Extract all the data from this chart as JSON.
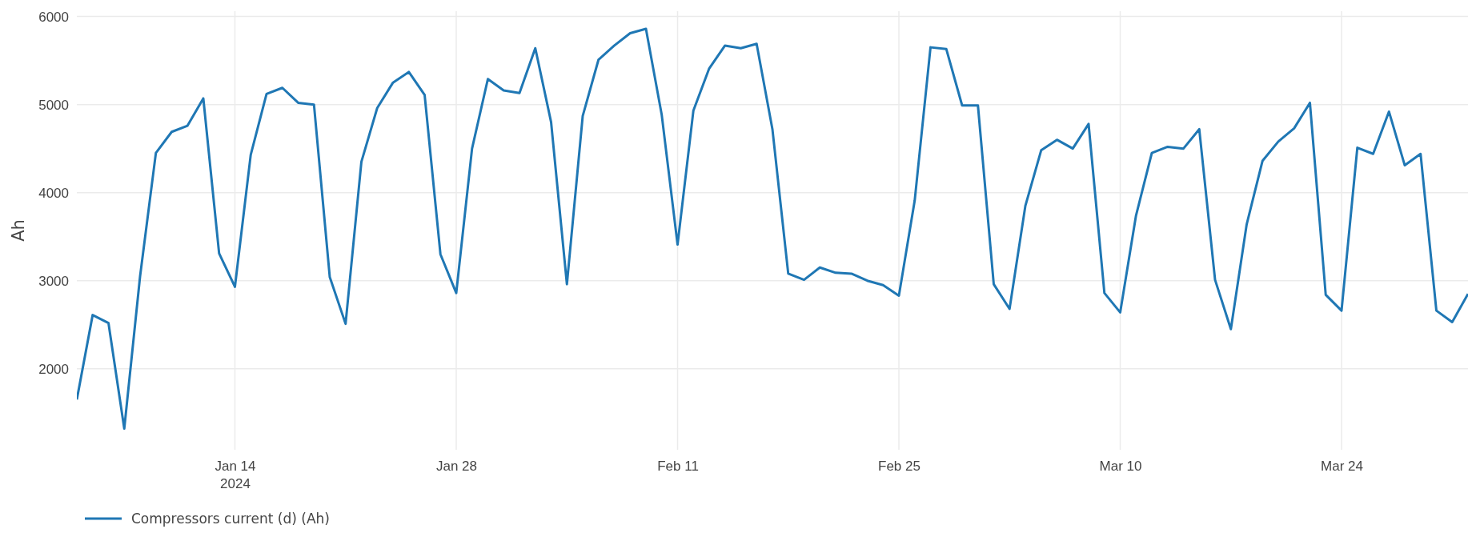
{
  "chart_data": {
    "type": "line",
    "ylabel": "Ah",
    "x": [
      "2024-01-04",
      "2024-01-05",
      "2024-01-06",
      "2024-01-07",
      "2024-01-08",
      "2024-01-09",
      "2024-01-10",
      "2024-01-11",
      "2024-01-12",
      "2024-01-13",
      "2024-01-14",
      "2024-01-15",
      "2024-01-16",
      "2024-01-17",
      "2024-01-18",
      "2024-01-19",
      "2024-01-20",
      "2024-01-21",
      "2024-01-22",
      "2024-01-23",
      "2024-01-24",
      "2024-01-25",
      "2024-01-26",
      "2024-01-27",
      "2024-01-28",
      "2024-01-29",
      "2024-01-30",
      "2024-01-31",
      "2024-02-01",
      "2024-02-02",
      "2024-02-03",
      "2024-02-04",
      "2024-02-05",
      "2024-02-06",
      "2024-02-07",
      "2024-02-08",
      "2024-02-09",
      "2024-02-10",
      "2024-02-11",
      "2024-02-12",
      "2024-02-13",
      "2024-02-14",
      "2024-02-15",
      "2024-02-16",
      "2024-02-17",
      "2024-02-18",
      "2024-02-19",
      "2024-02-20",
      "2024-02-21",
      "2024-02-22",
      "2024-02-23",
      "2024-02-24",
      "2024-02-25",
      "2024-02-26",
      "2024-02-27",
      "2024-02-28",
      "2024-02-29",
      "2024-03-01",
      "2024-03-02",
      "2024-03-03",
      "2024-03-04",
      "2024-03-05",
      "2024-03-06",
      "2024-03-07",
      "2024-03-08",
      "2024-03-09",
      "2024-03-10",
      "2024-03-11",
      "2024-03-12",
      "2024-03-13",
      "2024-03-14",
      "2024-03-15",
      "2024-03-16",
      "2024-03-17",
      "2024-03-18",
      "2024-03-19",
      "2024-03-20",
      "2024-03-21",
      "2024-03-22",
      "2024-03-23",
      "2024-03-24",
      "2024-03-25",
      "2024-03-26",
      "2024-03-27",
      "2024-03-28",
      "2024-03-29",
      "2024-03-30",
      "2024-03-31",
      "2024-04-01"
    ],
    "series": [
      {
        "name": "Compressors current (d) (Ah)",
        "color": "#1f77b4",
        "values": [
          1650,
          2610,
          2520,
          1320,
          3050,
          4450,
          4690,
          4760,
          5070,
          3310,
          2930,
          4430,
          5120,
          5190,
          5020,
          5000,
          3040,
          2510,
          4350,
          4960,
          5250,
          5370,
          5110,
          3300,
          2860,
          4500,
          5290,
          5160,
          5130,
          5640,
          4800,
          2960,
          4870,
          5510,
          5670,
          5810,
          5860,
          4880,
          3410,
          4930,
          5410,
          5670,
          5640,
          5690,
          4720,
          3080,
          3010,
          3150,
          3090,
          3080,
          3000,
          2950,
          2830,
          3910,
          5650,
          5630,
          4990,
          4990,
          2960,
          2680,
          3850,
          4480,
          4600,
          4500,
          4780,
          2860,
          2640,
          3740,
          4450,
          4520,
          4500,
          4720,
          3010,
          2450,
          3640,
          4360,
          4580,
          4730,
          5020,
          2840,
          2660,
          4510,
          4440,
          4920,
          4310,
          4440,
          2660,
          2530,
          2850
        ]
      }
    ],
    "xlim": [
      "2024-01-04",
      "2024-04-01"
    ],
    "xticks": [
      {
        "value": "2024-01-14",
        "label": "Jan 14\n2024"
      },
      {
        "value": "2024-01-28",
        "label": "Jan 28"
      },
      {
        "value": "2024-02-11",
        "label": "Feb 11"
      },
      {
        "value": "2024-02-25",
        "label": "Feb 25"
      },
      {
        "value": "2024-03-10",
        "label": "Mar 10"
      },
      {
        "value": "2024-03-24",
        "label": "Mar 24"
      }
    ],
    "ylim": [
      1080,
      6060
    ],
    "yticks": [
      2000,
      3000,
      4000,
      5000,
      6000
    ],
    "grid": true,
    "legend": "bottom left",
    "marker": "none",
    "line_style": "solid"
  }
}
